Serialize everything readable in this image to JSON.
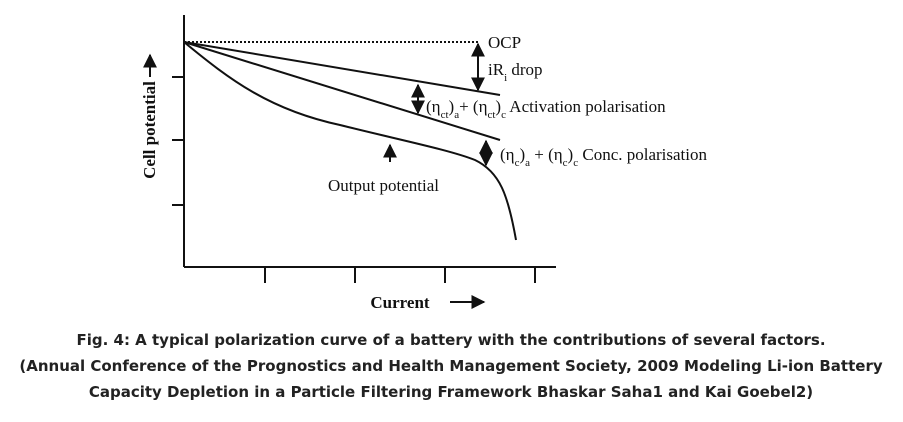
{
  "axes": {
    "y_label": "Cell potential",
    "x_label": "Current"
  },
  "annotations": [
    {
      "parts": [
        {
          "text": "OCP"
        }
      ]
    },
    {
      "parts": [
        {
          "text": "iR"
        },
        {
          "text": "i",
          "sub": true
        },
        {
          "text": " drop"
        }
      ]
    },
    {
      "parts": [
        {
          "text": "(η"
        },
        {
          "text": "ct",
          "sub": true
        },
        {
          "text": ")"
        },
        {
          "text": "a",
          "sub": true
        },
        {
          "text": "+ (η"
        },
        {
          "text": "ct",
          "sub": true
        },
        {
          "text": ")"
        },
        {
          "text": "c",
          "sub": true
        },
        {
          "text": " Activation polarisation"
        }
      ]
    },
    {
      "parts": [
        {
          "text": "(η"
        },
        {
          "text": "c",
          "sub": true
        },
        {
          "text": ")"
        },
        {
          "text": "a",
          "sub": true
        },
        {
          "text": " + (η"
        },
        {
          "text": "c",
          "sub": true
        },
        {
          "text": ")"
        },
        {
          "text": "c",
          "sub": true
        },
        {
          "text": " Conc. polarisation"
        }
      ]
    },
    {
      "parts": [
        {
          "text": "Output potential"
        }
      ]
    }
  ],
  "caption": [
    "Fig. 4: A typical polarization curve of a battery with the contributions of several factors.",
    "(Annual Conference of the Prognostics and Health Management Society, 2009 Modeling Li-ion Battery",
    "Capacity Depletion in a Particle Filtering Framework Bhaskar Saha1 and Kai Goebel2)"
  ]
}
